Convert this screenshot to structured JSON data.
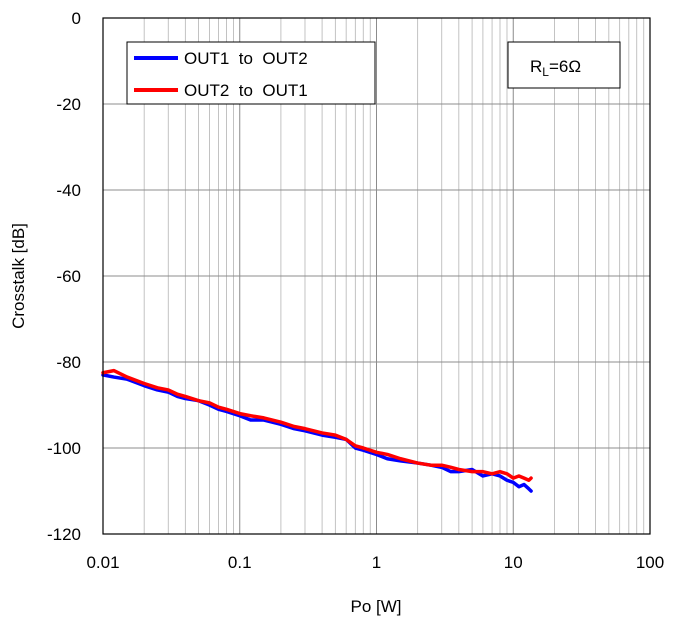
{
  "chart_data": {
    "type": "line",
    "title": "",
    "xlabel": "Po [W]",
    "ylabel": "Crosstalk [dB]",
    "xscale": "log",
    "xlim": [
      0.01,
      100
    ],
    "ylim": [
      -120,
      0
    ],
    "x_ticks": [
      0.01,
      0.1,
      1,
      10,
      100
    ],
    "x_tick_labels": [
      "0.01",
      "0.1",
      "1",
      "10",
      "100"
    ],
    "y_ticks": [
      0,
      -20,
      -40,
      -60,
      -80,
      -100,
      -120
    ],
    "y_tick_labels": [
      "0",
      "-20",
      "-40",
      "-60",
      "-80",
      "-100",
      "-120"
    ],
    "grid": true,
    "legend": "top-left",
    "annotation": {
      "label": "R",
      "subscript": "L",
      "value": "=6Ω",
      "position": "top-right"
    },
    "series": [
      {
        "name": "OUT1  to  OUT2",
        "color": "#0000ff",
        "x": [
          0.01,
          0.012,
          0.015,
          0.02,
          0.025,
          0.03,
          0.035,
          0.04,
          0.05,
          0.06,
          0.07,
          0.08,
          0.1,
          0.12,
          0.15,
          0.2,
          0.25,
          0.3,
          0.4,
          0.5,
          0.6,
          0.7,
          0.8,
          1,
          1.2,
          1.5,
          2,
          2.5,
          3,
          3.5,
          4,
          5,
          6,
          7,
          8,
          9,
          10,
          11,
          12,
          13,
          13.5
        ],
        "values": [
          -83,
          -83.5,
          -84,
          -85.5,
          -86.5,
          -87,
          -88,
          -88.5,
          -89,
          -90,
          -91,
          -91.5,
          -92.5,
          -93.5,
          -93.5,
          -94.5,
          -95.5,
          -96,
          -97,
          -97.5,
          -98,
          -100,
          -100.5,
          -101.5,
          -102.5,
          -103,
          -103.5,
          -104,
          -104.5,
          -105.5,
          -105.5,
          -105,
          -106.5,
          -106,
          -106.5,
          -107.5,
          -108,
          -109,
          -108.5,
          -109.5,
          -110
        ]
      },
      {
        "name": "OUT2  to  OUT1",
        "color": "#ff0000",
        "x": [
          0.01,
          0.012,
          0.015,
          0.02,
          0.025,
          0.03,
          0.035,
          0.04,
          0.05,
          0.06,
          0.07,
          0.08,
          0.1,
          0.12,
          0.15,
          0.2,
          0.25,
          0.3,
          0.4,
          0.5,
          0.6,
          0.7,
          0.8,
          1,
          1.2,
          1.5,
          2,
          2.5,
          3,
          3.5,
          4,
          5,
          6,
          7,
          8,
          9,
          10,
          11,
          12,
          13,
          13.5
        ],
        "values": [
          -82.5,
          -82,
          -83.5,
          -85,
          -86,
          -86.5,
          -87.5,
          -88,
          -89,
          -89.5,
          -90.5,
          -91,
          -92,
          -92.5,
          -93,
          -94,
          -95,
          -95.5,
          -96.5,
          -97,
          -98,
          -99.5,
          -100,
          -101,
          -101.5,
          -102.5,
          -103.5,
          -104,
          -104,
          -104.5,
          -105,
          -105.5,
          -105.5,
          -106,
          -105.5,
          -106,
          -107,
          -106.5,
          -107,
          -107.5,
          -107
        ]
      }
    ]
  }
}
